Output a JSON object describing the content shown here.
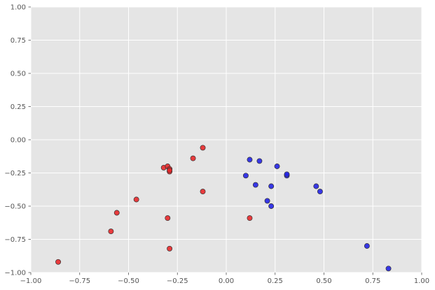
{
  "chart_data": {
    "type": "scatter",
    "title": "",
    "xlabel": "",
    "ylabel": "",
    "xlim": [
      -1.0,
      1.0
    ],
    "ylim": [
      -1.0,
      1.0
    ],
    "grid": true,
    "x_ticks": [
      "−1.00",
      "−0.75",
      "−0.50",
      "−0.25",
      "0.00",
      "0.25",
      "0.50",
      "0.75",
      "1.00"
    ],
    "y_ticks": [
      "1.00",
      "0.75",
      "0.50",
      "0.25",
      "0.00",
      "−0.25",
      "−0.50",
      "−0.75",
      "−1.00"
    ],
    "x_tick_values": [
      -1.0,
      -0.75,
      -0.5,
      -0.25,
      0.0,
      0.25,
      0.5,
      0.75,
      1.0
    ],
    "y_tick_values": [
      1.0,
      0.75,
      0.5,
      0.25,
      0.0,
      -0.25,
      -0.5,
      -0.75,
      -1.0
    ],
    "series": [
      {
        "color": "#e8282a",
        "points": [
          [
            -0.86,
            -0.92
          ],
          [
            -0.59,
            -0.69
          ],
          [
            -0.56,
            -0.55
          ],
          [
            -0.46,
            -0.45
          ],
          [
            -0.32,
            -0.21
          ],
          [
            -0.3,
            -0.2
          ],
          [
            -0.29,
            -0.22
          ],
          [
            -0.29,
            -0.24
          ],
          [
            -0.29,
            -0.23
          ],
          [
            -0.3,
            -0.59
          ],
          [
            -0.29,
            -0.82
          ],
          [
            -0.17,
            -0.14
          ],
          [
            -0.12,
            -0.06
          ],
          [
            -0.12,
            -0.39
          ],
          [
            0.12,
            -0.59
          ]
        ]
      },
      {
        "color": "#2323e6",
        "points": [
          [
            0.1,
            -0.27
          ],
          [
            0.12,
            -0.15
          ],
          [
            0.15,
            -0.34
          ],
          [
            0.17,
            -0.16
          ],
          [
            0.21,
            -0.46
          ],
          [
            0.23,
            -0.35
          ],
          [
            0.23,
            -0.5
          ],
          [
            0.26,
            -0.2
          ],
          [
            0.31,
            -0.27
          ],
          [
            0.31,
            -0.26
          ],
          [
            0.46,
            -0.35
          ],
          [
            0.48,
            -0.39
          ],
          [
            0.72,
            -0.8
          ],
          [
            0.83,
            -0.97
          ]
        ]
      }
    ]
  }
}
